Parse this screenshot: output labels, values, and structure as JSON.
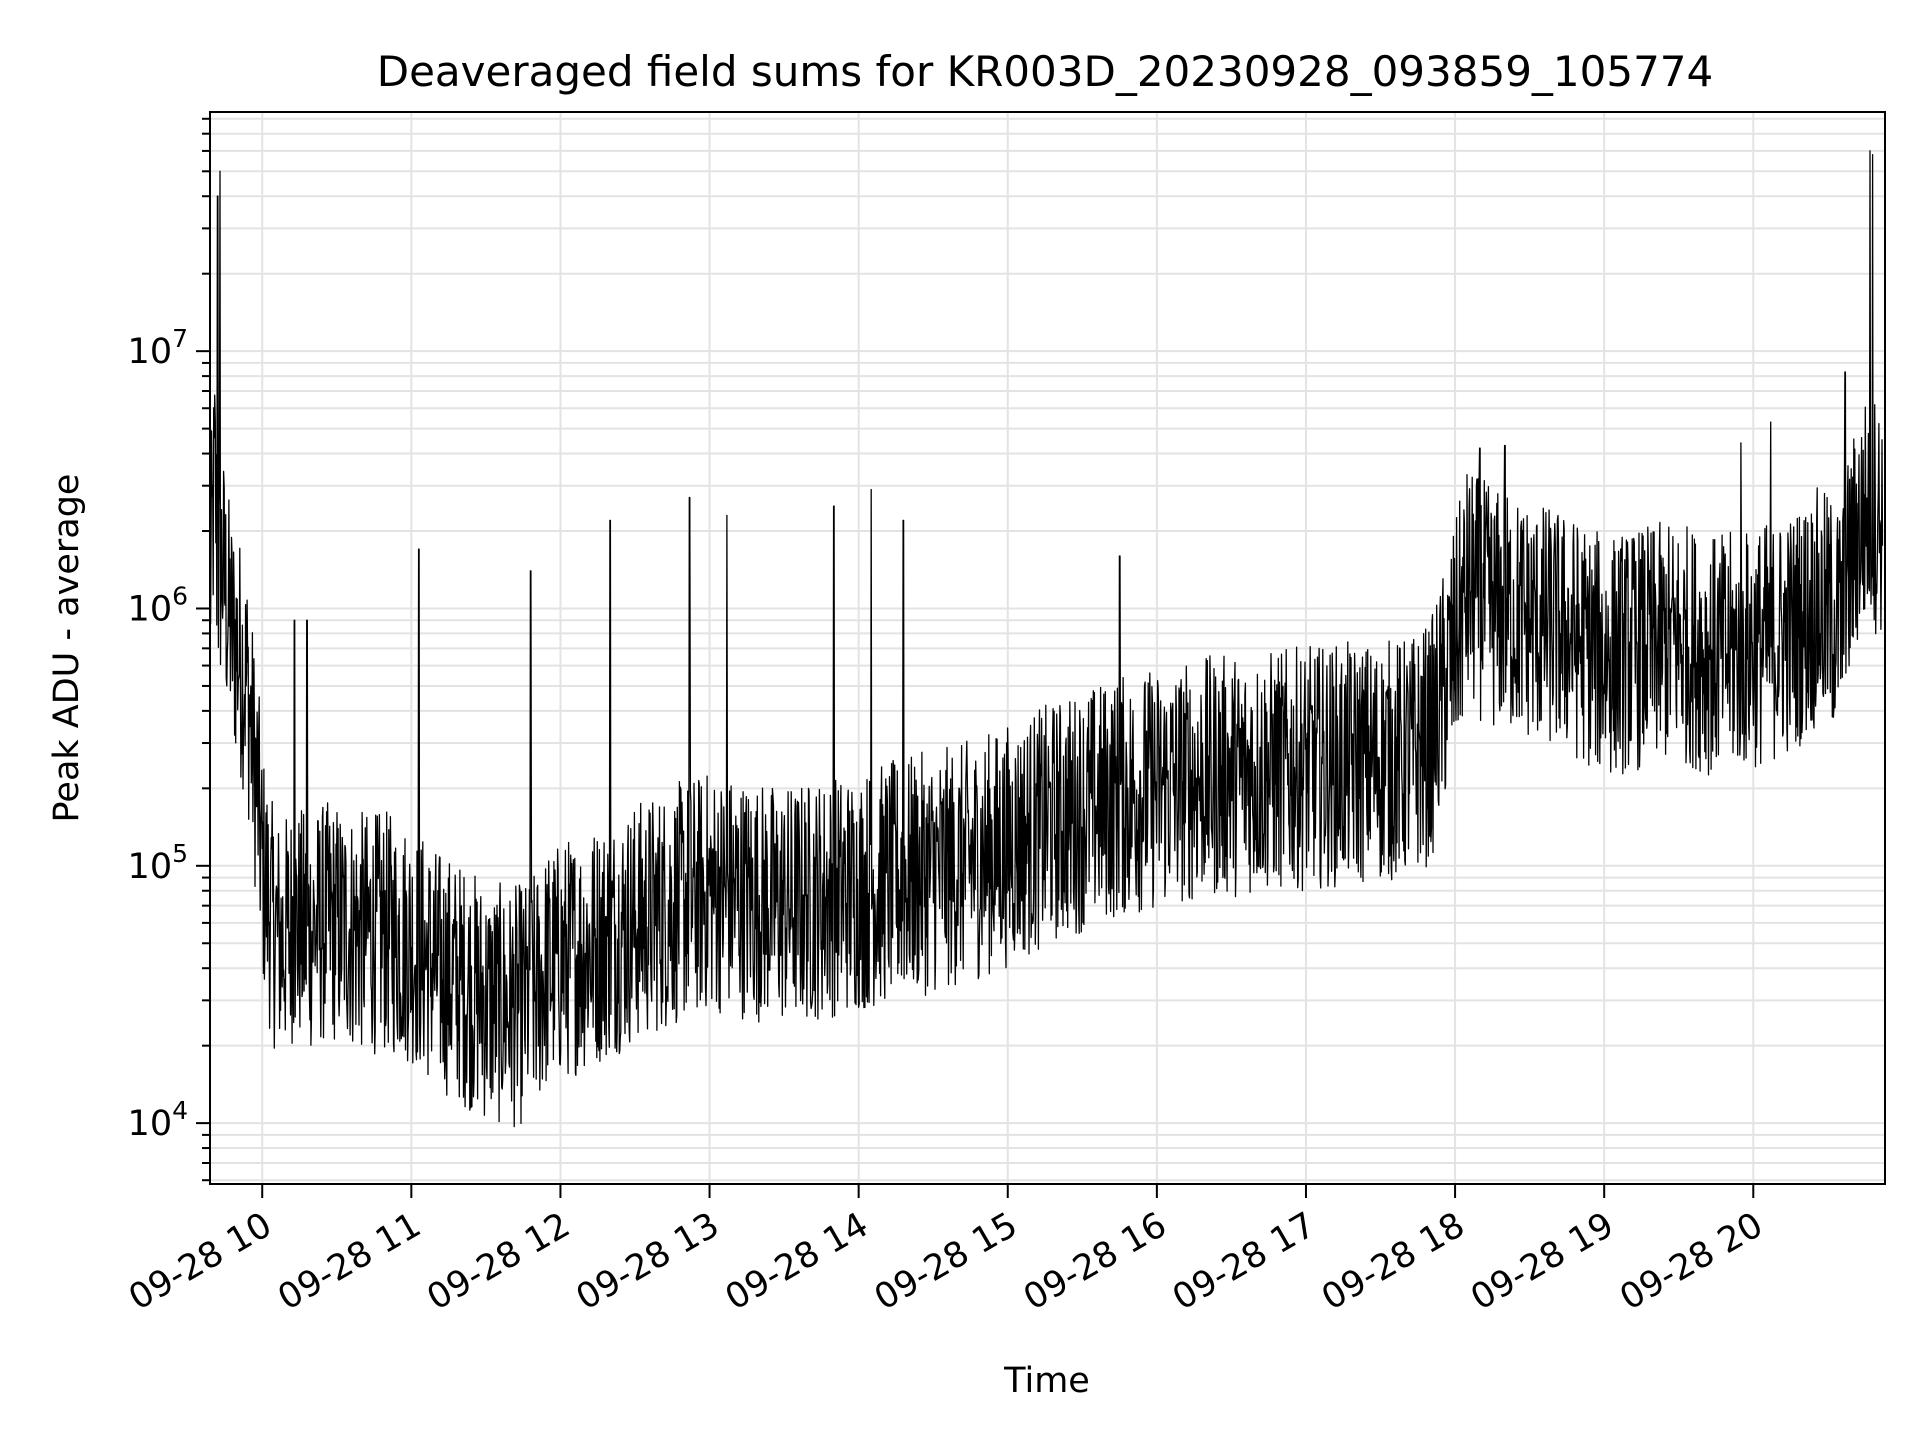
{
  "chart_data": {
    "type": "line",
    "title": "Deaveraged field sums for KR003D_20230928_093859_105774",
    "xlabel": "Time",
    "ylabel": "Peak ADU - average",
    "y_scale": "log",
    "ylim": [
      5800,
      85000000
    ],
    "xlim": [
      "2023-09-28 09:38:59",
      "2023-09-28 20:53:00"
    ],
    "grid": true,
    "line_color": "#000000",
    "x_ticks": [
      {
        "value": "2023-09-28 10:00",
        "label": "09-28 10"
      },
      {
        "value": "2023-09-28 11:00",
        "label": "09-28 11"
      },
      {
        "value": "2023-09-28 12:00",
        "label": "09-28 12"
      },
      {
        "value": "2023-09-28 13:00",
        "label": "09-28 13"
      },
      {
        "value": "2023-09-28 14:00",
        "label": "09-28 14"
      },
      {
        "value": "2023-09-28 15:00",
        "label": "09-28 15"
      },
      {
        "value": "2023-09-28 16:00",
        "label": "09-28 16"
      },
      {
        "value": "2023-09-28 17:00",
        "label": "09-28 17"
      },
      {
        "value": "2023-09-28 18:00",
        "label": "09-28 18"
      },
      {
        "value": "2023-09-28 19:00",
        "label": "09-28 19"
      },
      {
        "value": "2023-09-28 20:00",
        "label": "09-28 20"
      }
    ],
    "y_ticks": [
      {
        "value": 10000,
        "base": "10",
        "exp": "4"
      },
      {
        "value": 100000,
        "base": "10",
        "exp": "5"
      },
      {
        "value": 1000000,
        "base": "10",
        "exp": "6"
      },
      {
        "value": 10000000,
        "base": "10",
        "exp": "7"
      }
    ],
    "series": [
      {
        "x": [
          "2023-09-28 09:39",
          "2023-09-28 09:40",
          "2023-09-28 09:41",
          "2023-09-28 09:42",
          "2023-09-28 09:44",
          "2023-09-28 09:46",
          "2023-09-28 09:48",
          "2023-09-28 09:50",
          "2023-09-28 09:52",
          "2023-09-28 09:54",
          "2023-09-28 09:56",
          "2023-09-28 09:58",
          "2023-09-28 10:00",
          "2023-09-28 10:04",
          "2023-09-28 10:08",
          "2023-09-28 10:12",
          "2023-09-28 10:18",
          "2023-09-28 10:25",
          "2023-09-28 10:30",
          "2023-09-28 10:40",
          "2023-09-28 10:50",
          "2023-09-28 11:00",
          "2023-09-28 11:10",
          "2023-09-28 11:20",
          "2023-09-28 11:30",
          "2023-09-28 11:40",
          "2023-09-28 11:48",
          "2023-09-28 11:55",
          "2023-09-28 12:05",
          "2023-09-28 12:15",
          "2023-09-28 12:30",
          "2023-09-28 12:45",
          "2023-09-28 13:00",
          "2023-09-28 13:15",
          "2023-09-28 13:30",
          "2023-09-28 13:45",
          "2023-09-28 14:00",
          "2023-09-28 14:20",
          "2023-09-28 14:40",
          "2023-09-28 15:00",
          "2023-09-28 15:20",
          "2023-09-28 15:40",
          "2023-09-28 16:00",
          "2023-09-28 16:20",
          "2023-09-28 16:40",
          "2023-09-28 17:00",
          "2023-09-28 17:20",
          "2023-09-28 17:40",
          "2023-09-28 17:50",
          "2023-09-28 17:56",
          "2023-09-28 18:05",
          "2023-09-28 18:15",
          "2023-09-28 18:30",
          "2023-09-28 18:45",
          "2023-09-28 19:00",
          "2023-09-28 19:15",
          "2023-09-28 19:30",
          "2023-09-28 19:45",
          "2023-09-28 20:00",
          "2023-09-28 20:15",
          "2023-09-28 20:25",
          "2023-09-28 20:35",
          "2023-09-28 20:42",
          "2023-09-28 20:47",
          "2023-09-28 20:52"
        ],
        "y": [
          1200000,
          2000000,
          3500000,
          1300000,
          1500000,
          1000000,
          800000,
          700000,
          600000,
          500000,
          300000,
          200000,
          100000,
          60000,
          50000,
          60000,
          55000,
          60000,
          60000,
          55000,
          55000,
          50000,
          40000,
          35000,
          30000,
          28000,
          30000,
          40000,
          45000,
          50000,
          60000,
          70000,
          80000,
          75000,
          70000,
          75000,
          80000,
          90000,
          100000,
          120000,
          150000,
          180000,
          200000,
          220000,
          230000,
          240000,
          250000,
          260000,
          300000,
          500000,
          1200000,
          1000000,
          900000,
          800000,
          650000,
          700000,
          750000,
          650000,
          700000,
          800000,
          1000000,
          900000,
          2000000,
          2500000,
          2200000
        ]
      }
    ],
    "spikes": [
      {
        "x": "2023-09-28 09:43",
        "y": 50000000
      },
      {
        "x": "2023-09-28 09:42",
        "y": 40000000
      },
      {
        "x": "2023-09-28 10:13",
        "y": 900000
      },
      {
        "x": "2023-09-28 10:18",
        "y": 900000
      },
      {
        "x": "2023-09-28 11:03",
        "y": 1700000
      },
      {
        "x": "2023-09-28 11:48",
        "y": 1400000
      },
      {
        "x": "2023-09-28 12:20",
        "y": 2200000
      },
      {
        "x": "2023-09-28 12:52",
        "y": 2700000
      },
      {
        "x": "2023-09-28 13:07",
        "y": 2300000
      },
      {
        "x": "2023-09-28 13:50",
        "y": 2500000
      },
      {
        "x": "2023-09-28 14:05",
        "y": 2900000
      },
      {
        "x": "2023-09-28 14:18",
        "y": 2200000
      },
      {
        "x": "2023-09-28 15:45",
        "y": 1600000
      },
      {
        "x": "2023-09-28 18:10",
        "y": 4200000
      },
      {
        "x": "2023-09-28 18:20",
        "y": 4300000
      },
      {
        "x": "2023-09-28 19:55",
        "y": 4400000
      },
      {
        "x": "2023-09-28 20:07",
        "y": 5300000
      },
      {
        "x": "2023-09-28 20:37",
        "y": 8300000
      },
      {
        "x": "2023-09-28 20:47",
        "y": 60000000
      },
      {
        "x": "2023-09-28 20:48",
        "y": 58000000
      }
    ]
  }
}
